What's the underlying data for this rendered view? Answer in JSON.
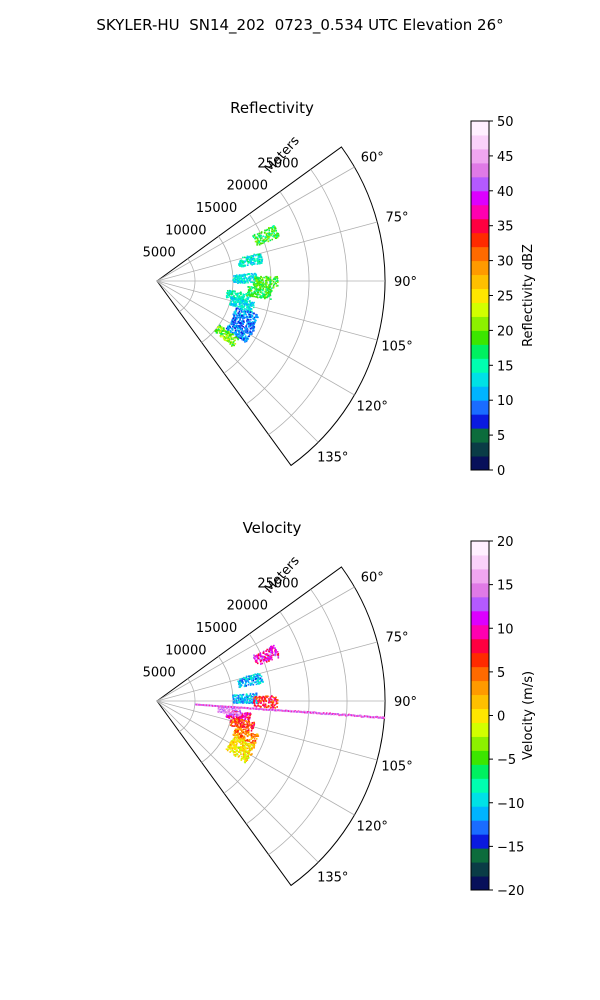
{
  "figure": {
    "title": "SKYLER-HU  SN14_202  0723_0.534 UTC Elevation 26°"
  },
  "chart_data": [
    {
      "type": "polar-sector",
      "title": "Reflectivity",
      "radial_label": "Meters",
      "radial_ticks": [
        "5000",
        "10000",
        "15000",
        "20000",
        "25000"
      ],
      "radial_tick_values": [
        5000,
        10000,
        15000,
        20000,
        25000
      ],
      "rlim": [
        0,
        30000
      ],
      "theta_range_deg": [
        54,
        144
      ],
      "theta_ticks": [
        "60°",
        "75°",
        "90°",
        "105°",
        "120°",
        "135°"
      ],
      "theta_tick_values": [
        60,
        75,
        90,
        105,
        120,
        135
      ],
      "grid": true,
      "colorbar": {
        "label": "Reflectivity dBZ",
        "range": [
          0,
          50
        ],
        "ticks": [
          "0",
          "5",
          "10",
          "15",
          "20",
          "25",
          "30",
          "35",
          "40",
          "45",
          "50"
        ],
        "tick_values": [
          0,
          5,
          10,
          15,
          20,
          25,
          30,
          35,
          40,
          45,
          50
        ],
        "colormap": [
          "#08105a",
          "#0a3c46",
          "#0c6c3c",
          "#0a1adf",
          "#1a6cff",
          "#00b4ff",
          "#00e1e6",
          "#00ffb0",
          "#00f060",
          "#3ce600",
          "#8cf000",
          "#d2ff00",
          "#ffe600",
          "#ffc000",
          "#ff9a00",
          "#ff6a00",
          "#ff2a00",
          "#ff0040",
          "#ff00b0",
          "#dc00ff",
          "#b45aff",
          "#e07ae6",
          "#f0a6f0",
          "#fad2fa",
          "#fff0ff"
        ]
      },
      "echoes": [
        {
          "az": 100,
          "range": 10800,
          "value": 15
        },
        {
          "az": 105,
          "range": 11500,
          "value": 13
        },
        {
          "az": 111,
          "range": 12400,
          "value": 10
        },
        {
          "az": 117,
          "range": 12600,
          "value": 9
        },
        {
          "az": 122,
          "range": 12500,
          "value": 10
        },
        {
          "az": 67,
          "range": 15500,
          "value": 18
        },
        {
          "az": 77,
          "range": 12500,
          "value": 14
        },
        {
          "az": 88,
          "range": 11500,
          "value": 13
        },
        {
          "az": 90,
          "range": 14200,
          "value": 19
        },
        {
          "az": 128,
          "range": 11500,
          "value": 20
        },
        {
          "az": 96,
          "range": 13500,
          "value": 18
        }
      ]
    },
    {
      "type": "polar-sector",
      "title": "Velocity",
      "radial_label": "Meters",
      "radial_ticks": [
        "5000",
        "10000",
        "15000",
        "20000",
        "25000"
      ],
      "radial_tick_values": [
        5000,
        10000,
        15000,
        20000,
        25000
      ],
      "rlim": [
        0,
        30000
      ],
      "theta_range_deg": [
        54,
        144
      ],
      "theta_ticks": [
        "60°",
        "75°",
        "90°",
        "105°",
        "120°",
        "135°"
      ],
      "theta_tick_values": [
        60,
        75,
        90,
        105,
        120,
        135
      ],
      "grid": true,
      "colorbar": {
        "label": "Velocity (m/s)",
        "range": [
          -20,
          20
        ],
        "ticks": [
          "−20",
          "−15",
          "−10",
          "−5",
          "0",
          "5",
          "10",
          "15",
          "20"
        ],
        "tick_values": [
          -20,
          -15,
          -10,
          -5,
          0,
          5,
          10,
          15,
          20
        ],
        "colormap": [
          "#08105a",
          "#0a3c46",
          "#0c6c3c",
          "#0a1adf",
          "#1a6cff",
          "#00b4ff",
          "#00e1e6",
          "#00ffb0",
          "#00f060",
          "#3ce600",
          "#8cf000",
          "#d2ff00",
          "#ffe600",
          "#ffc000",
          "#ff9a00",
          "#ff6a00",
          "#ff2a00",
          "#ff0040",
          "#ff00b0",
          "#dc00ff",
          "#b45aff",
          "#e07ae6",
          "#f0a6f0",
          "#fad2fa",
          "#fff0ff"
        ]
      },
      "echoes": [
        {
          "az": 100,
          "range": 10800,
          "value": 9
        },
        {
          "az": 97,
          "range": 9500,
          "value": 15
        },
        {
          "az": 105,
          "range": 11500,
          "value": 6
        },
        {
          "az": 111,
          "range": 12400,
          "value": 4
        },
        {
          "az": 117,
          "range": 12600,
          "value": 1
        },
        {
          "az": 122,
          "range": 12500,
          "value": 0
        },
        {
          "az": 67,
          "range": 15500,
          "value": 10
        },
        {
          "az": 77,
          "range": 12500,
          "value": -11
        },
        {
          "az": 88,
          "range": 11500,
          "value": -11
        },
        {
          "az": 90,
          "range": 14200,
          "value": 7
        }
      ],
      "streak": {
        "az": 94,
        "range_start": 5000,
        "range_end": 30000,
        "values": [
          12,
          15,
          10,
          16
        ]
      }
    }
  ]
}
